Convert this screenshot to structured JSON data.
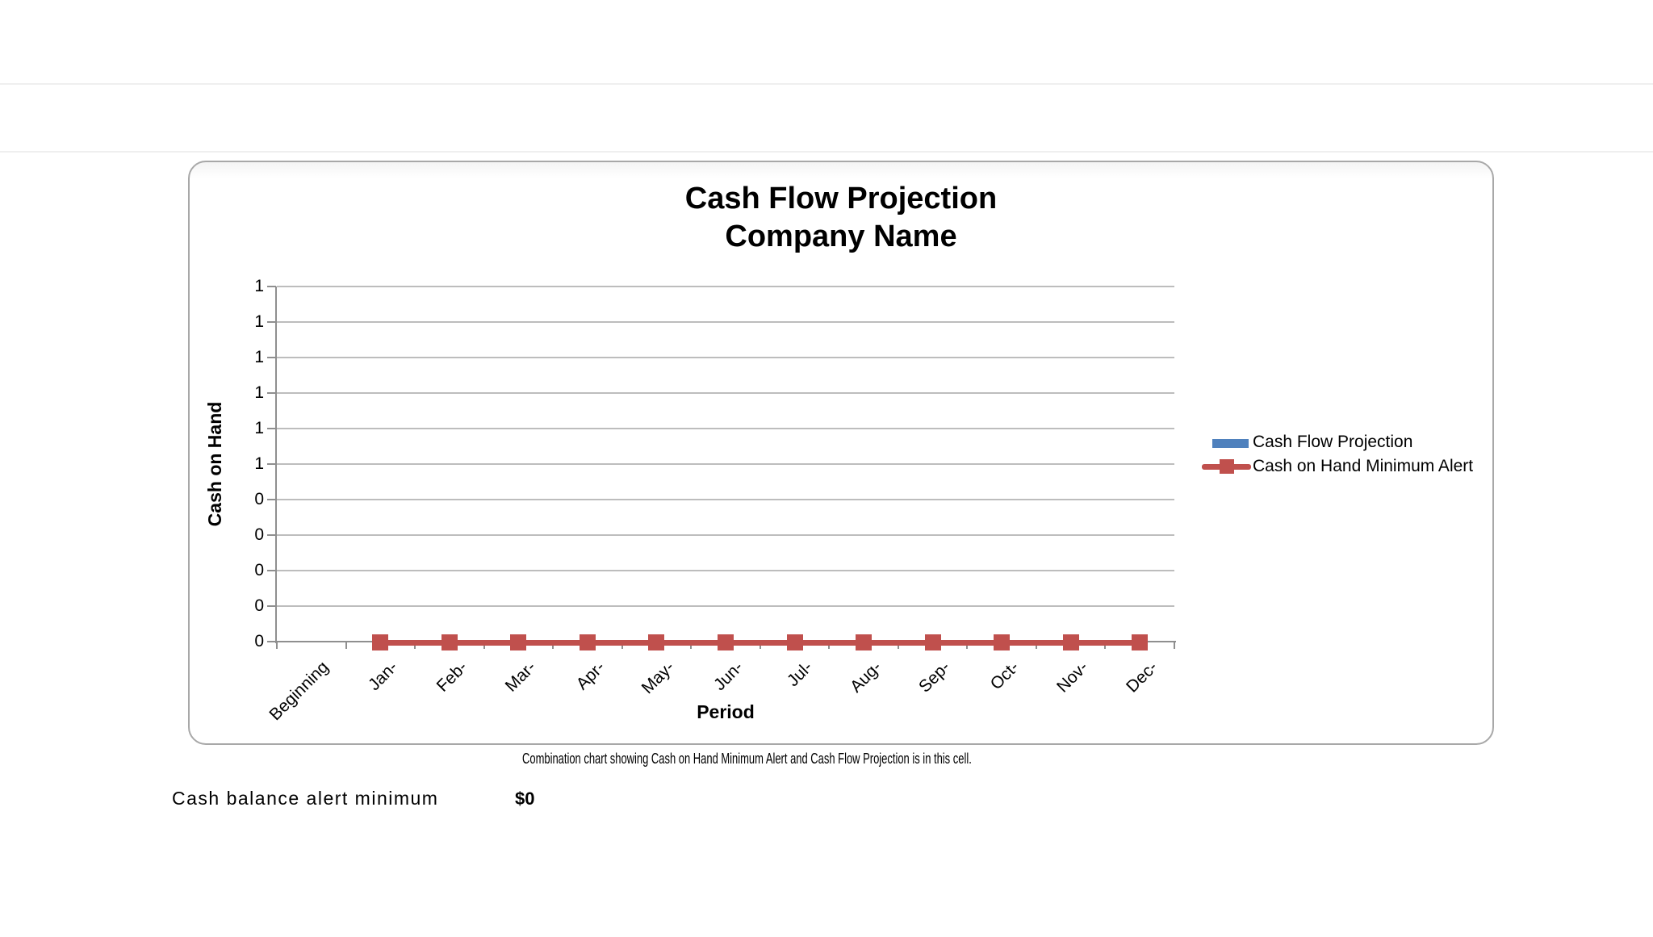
{
  "chart_caption": "Combination chart showing Cash on Hand Minimum Alert and Cash Flow Projection is in this cell.",
  "alert_row": {
    "label": "Cash balance alert minimum",
    "value": "$0"
  },
  "colors": {
    "series_bar_blue": "#4F81BD",
    "series_line_red": "#C0504D",
    "gridline": "#BDBDBD",
    "axis": "#8F8F8F",
    "frame_border": "#A8A8A8"
  },
  "chart_data": {
    "type": "line",
    "title": "Cash Flow Projection",
    "subtitle": "Company Name",
    "xlabel": "Period",
    "ylabel": "Cash on Hand",
    "categories": [
      "Beginning",
      "Jan-",
      "Feb-",
      "Mar-",
      "Apr-",
      "May-",
      "Jun-",
      "Jul-",
      "Aug-",
      "Sep-",
      "Oct-",
      "Nov-",
      "Dec-"
    ],
    "y_axis": {
      "min": 0,
      "max": 1,
      "step": 0.1,
      "tick_labels_top_to_bottom": [
        "1",
        "1",
        "1",
        "1",
        "1",
        "1",
        "0",
        "0",
        "0",
        "0",
        "0"
      ]
    },
    "series": [
      {
        "name": "Cash Flow Projection",
        "type": "bar",
        "color": "#4F81BD",
        "values": [
          null,
          null,
          null,
          null,
          null,
          null,
          null,
          null,
          null,
          null,
          null,
          null,
          null
        ]
      },
      {
        "name": "Cash on Hand Minimum Alert",
        "type": "line",
        "marker": "square",
        "color": "#C0504D",
        "values": [
          null,
          0,
          0,
          0,
          0,
          0,
          0,
          0,
          0,
          0,
          0,
          0,
          0
        ]
      }
    ],
    "grid": true,
    "legend_position": "right"
  }
}
